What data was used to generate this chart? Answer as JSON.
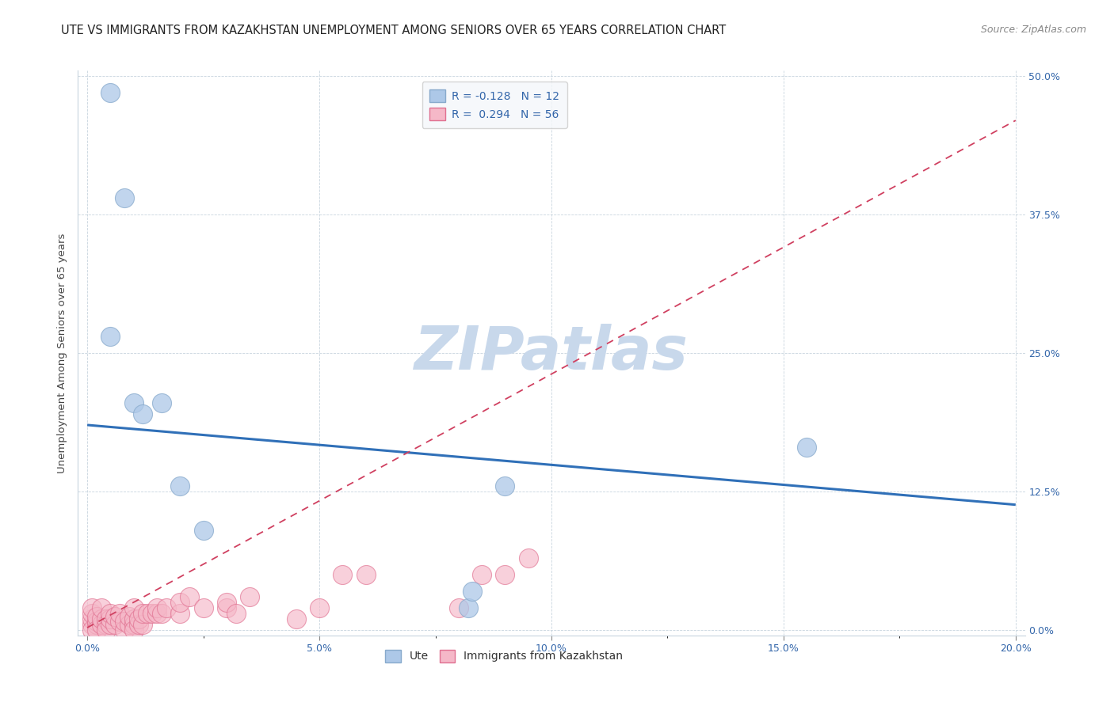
{
  "title": "UTE VS IMMIGRANTS FROM KAZAKHSTAN UNEMPLOYMENT AMONG SENIORS OVER 65 YEARS CORRELATION CHART",
  "source": "Source: ZipAtlas.com",
  "ylabel": "Unemployment Among Seniors over 65 years",
  "xlabel_ticks": [
    "0.0%",
    "",
    "5.0%",
    "",
    "10.0%",
    "",
    "15.0%",
    "",
    "20.0%"
  ],
  "xlabel_vals": [
    0.0,
    0.025,
    0.05,
    0.075,
    0.1,
    0.125,
    0.15,
    0.175,
    0.2
  ],
  "ylabel_ticks": [
    "0.0%",
    "12.5%",
    "25.0%",
    "37.5%",
    "50.0%"
  ],
  "ylabel_vals": [
    0.0,
    0.125,
    0.25,
    0.375,
    0.5
  ],
  "xlim": [
    -0.002,
    0.202
  ],
  "ylim": [
    -0.005,
    0.505
  ],
  "ute_R": -0.128,
  "ute_N": 12,
  "kaz_R": 0.294,
  "kaz_N": 56,
  "ute_color": "#adc8e8",
  "ute_edge_color": "#88aacc",
  "kaz_color": "#f5b8c8",
  "kaz_edge_color": "#e07090",
  "trend_ute_color": "#3070b8",
  "trend_kaz_color": "#d04060",
  "watermark": "ZIPatlas",
  "watermark_color": "#c8d8eb",
  "legend_box_color": "#f4f7fa",
  "ute_points_x": [
    0.005,
    0.008,
    0.005,
    0.01,
    0.012,
    0.016,
    0.02,
    0.025,
    0.082,
    0.083,
    0.09,
    0.155
  ],
  "ute_points_y": [
    0.485,
    0.39,
    0.265,
    0.205,
    0.195,
    0.205,
    0.13,
    0.09,
    0.02,
    0.035,
    0.13,
    0.165
  ],
  "kaz_points_x": [
    0.001,
    0.001,
    0.001,
    0.001,
    0.001,
    0.002,
    0.002,
    0.002,
    0.002,
    0.003,
    0.003,
    0.003,
    0.004,
    0.004,
    0.004,
    0.005,
    0.005,
    0.005,
    0.006,
    0.006,
    0.007,
    0.007,
    0.008,
    0.008,
    0.009,
    0.009,
    0.01,
    0.01,
    0.01,
    0.01,
    0.011,
    0.011,
    0.012,
    0.012,
    0.013,
    0.014,
    0.015,
    0.015,
    0.016,
    0.017,
    0.02,
    0.02,
    0.022,
    0.025,
    0.03,
    0.03,
    0.032,
    0.035,
    0.045,
    0.05,
    0.055,
    0.06,
    0.08,
    0.085,
    0.09,
    0.095
  ],
  "kaz_points_y": [
    0.005,
    0.01,
    0.015,
    0.02,
    0.0,
    0.005,
    0.008,
    0.012,
    0.0,
    0.005,
    0.01,
    0.02,
    0.005,
    0.01,
    0.0,
    0.005,
    0.01,
    0.015,
    0.005,
    0.012,
    0.008,
    0.015,
    0.0,
    0.008,
    0.005,
    0.012,
    0.005,
    0.01,
    0.02,
    0.0,
    0.005,
    0.01,
    0.005,
    0.015,
    0.015,
    0.015,
    0.015,
    0.02,
    0.015,
    0.02,
    0.015,
    0.025,
    0.03,
    0.02,
    0.02,
    0.025,
    0.015,
    0.03,
    0.01,
    0.02,
    0.05,
    0.05,
    0.02,
    0.05,
    0.05,
    0.065
  ],
  "trend_ute_x0": 0.0,
  "trend_ute_y0": 0.185,
  "trend_ute_x1": 0.2,
  "trend_ute_y1": 0.113,
  "trend_kaz_x0": 0.0,
  "trend_kaz_y0": 0.002,
  "trend_kaz_x1": 0.2,
  "trend_kaz_y1": 0.46,
  "background_color": "#ffffff",
  "grid_color": "#c8d4de",
  "title_fontsize": 10.5,
  "axis_label_fontsize": 9.5,
  "tick_fontsize": 9,
  "legend_fontsize": 10,
  "source_fontsize": 9
}
